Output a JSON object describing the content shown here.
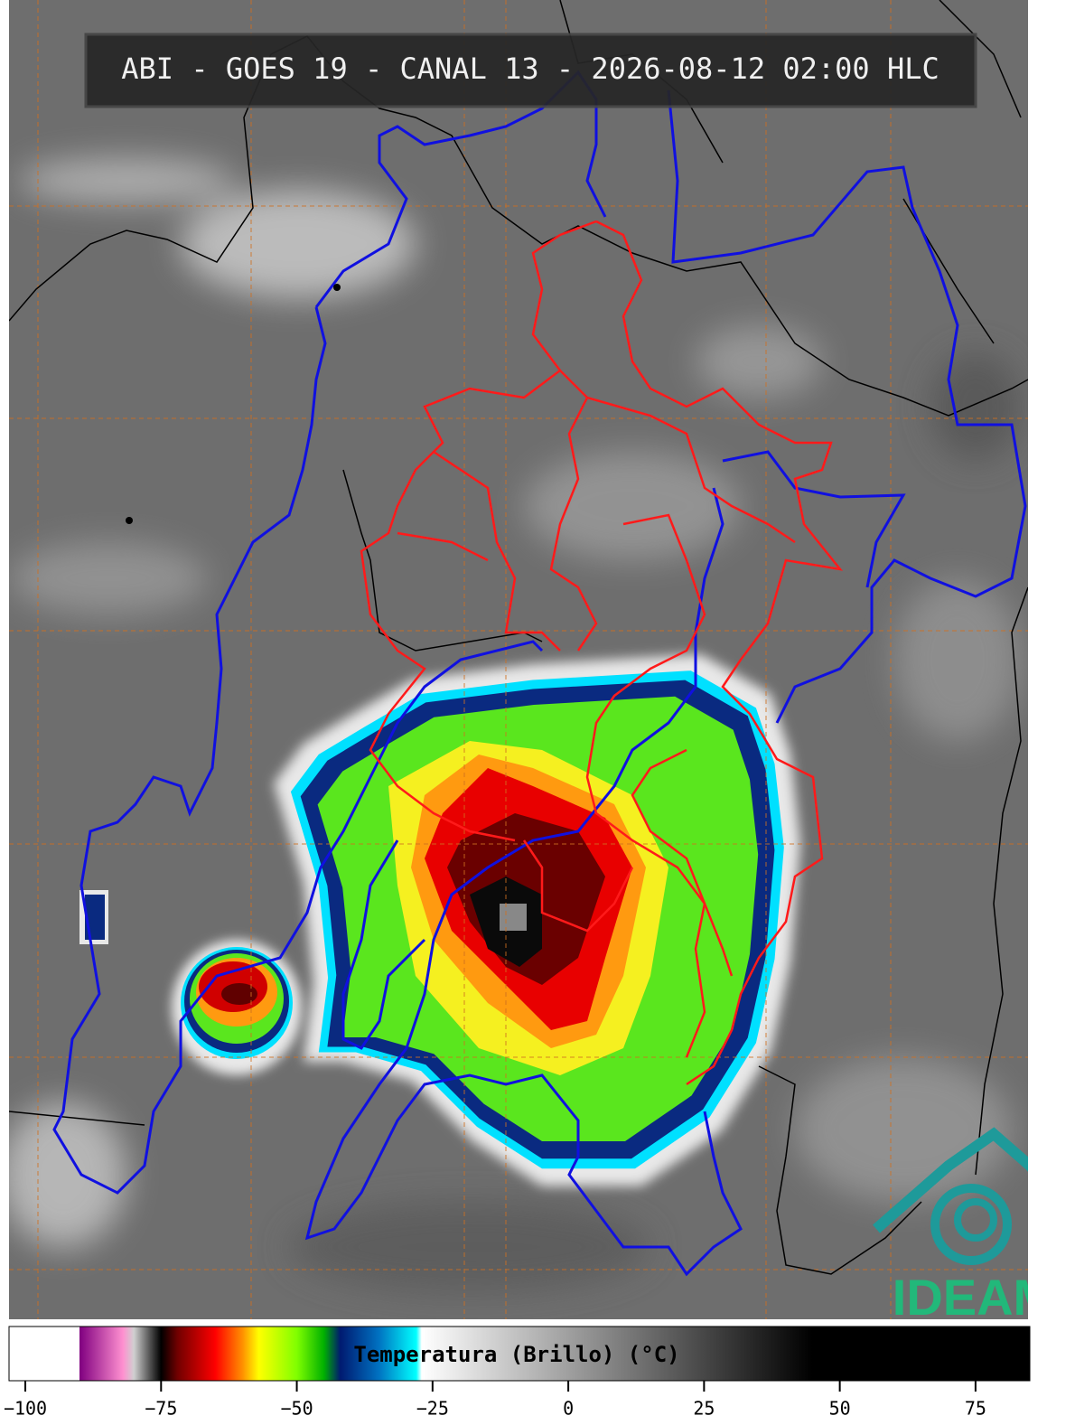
{
  "title": "ABI - GOES 19 - CANAL 13 - 2026-08-12 02:00 HLC",
  "colorbar": {
    "label": "Temperatura (Brillo) (°C)",
    "xlim": [
      -103,
      85
    ],
    "xticks": [
      {
        "value": -100,
        "label": "−100"
      },
      {
        "value": -75,
        "label": "−75"
      },
      {
        "value": -50,
        "label": "−50"
      },
      {
        "value": -25,
        "label": "−25"
      },
      0,
      25,
      50,
      75
    ],
    "colormap": [
      {
        "value": -103,
        "color": "#ffffff"
      },
      {
        "value": -90,
        "color": "#ffffff"
      },
      {
        "value": -90,
        "color": "#800080"
      },
      {
        "value": -82,
        "color": "#ff90d0"
      },
      {
        "value": -80,
        "color": "#d0d0d0"
      },
      {
        "value": -77,
        "color": "#505050"
      },
      {
        "value": -75,
        "color": "#000000"
      },
      {
        "value": -72,
        "color": "#700000"
      },
      {
        "value": -65,
        "color": "#ff0000"
      },
      {
        "value": -60,
        "color": "#ff9000"
      },
      {
        "value": -57,
        "color": "#ffff00"
      },
      {
        "value": -50,
        "color": "#80ff00"
      },
      {
        "value": -45,
        "color": "#00b000"
      },
      {
        "value": -42,
        "color": "#001a70"
      },
      {
        "value": -35,
        "color": "#0070c0"
      },
      {
        "value": -28,
        "color": "#00ffff"
      },
      {
        "value": -27,
        "color": "#ffffff"
      },
      {
        "value": 45,
        "color": "#000000"
      },
      {
        "value": 85,
        "color": "#000000"
      }
    ]
  },
  "logo": {
    "text": "IDEAM"
  }
}
